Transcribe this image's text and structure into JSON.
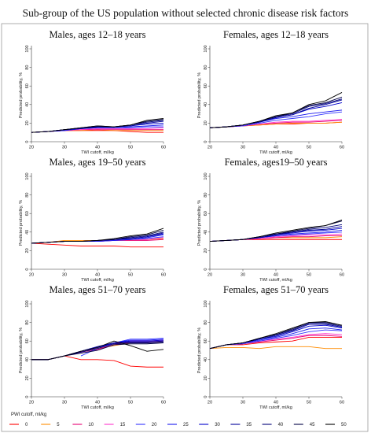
{
  "title": "Sub-group of the US population without selected chronic disease risk factors",
  "chart_data": {
    "type": "line",
    "title": "Sub-group of the US population without selected chronic disease risk factors",
    "colors": [
      "#ff0000",
      "#ff8c00",
      "#e60073",
      "#ff33cc",
      "#3333ff",
      "#1a1aee",
      "#0000cc",
      "#000099",
      "#000077",
      "#000044",
      "#000000"
    ],
    "legend": {
      "title": "PWI cutoff, ml/kg",
      "labels": [
        "0",
        "5",
        "10",
        "15",
        "20",
        "25",
        "30",
        "35",
        "40",
        "45",
        "50"
      ],
      "placement": "bottom"
    },
    "panels": [
      {
        "title": "Males, ages 12–18 years",
        "xlabel": "TWI cutoff, ml/kg",
        "ylabel": "Predicted probability, %",
        "xlim": [
          20,
          60
        ],
        "ylim": [
          0,
          100
        ],
        "xticks": [
          "20",
          "30",
          "40",
          "50",
          "60"
        ],
        "yticks": [
          "0",
          "20",
          "40",
          "60",
          "80",
          "100"
        ],
        "x": [
          20,
          25,
          30,
          35,
          40,
          45,
          50,
          55,
          60
        ],
        "series": [
          {
            "values": [
              10,
              11,
              12,
              12,
              12,
              12,
              11,
              10,
              10
            ]
          },
          {
            "values": [
              10,
              11,
              12,
              12,
              13,
              12,
              12,
              12,
              12
            ]
          },
          {
            "values": [
              10,
              11,
              12,
              13,
              13,
              13,
              13,
              13,
              13
            ]
          },
          {
            "values": [
              10,
              11,
              12,
              13,
              14,
              14,
              14,
              14,
              15
            ]
          },
          {
            "values": [
              10,
              11,
              12,
              14,
              15,
              15,
              15,
              16,
              16
            ]
          },
          {
            "values": [
              10,
              11,
              12,
              14,
              15,
              15,
              16,
              17,
              18
            ]
          },
          {
            "values": [
              10,
              11,
              13,
              14,
              16,
              16,
              17,
              19,
              20
            ]
          },
          {
            "values": [
              10,
              11,
              13,
              14,
              16,
              16,
              17,
              20,
              22
            ]
          },
          {
            "values": [
              10,
              11,
              13,
              15,
              16,
              16,
              18,
              21,
              23
            ]
          },
          {
            "values": [
              10,
              11,
              13,
              15,
              17,
              16,
              18,
              22,
              24
            ]
          },
          {
            "values": [
              10,
              11,
              13,
              15,
              17,
              16,
              18,
              23,
              25
            ]
          }
        ]
      },
      {
        "title": "Females, ages 12–18 years",
        "xlabel": "TWI cutoff, ml/kg",
        "ylabel": "Predicted probability, %",
        "xlim": [
          20,
          60
        ],
        "ylim": [
          0,
          100
        ],
        "xticks": [
          "20",
          "30",
          "40",
          "50",
          "60"
        ],
        "yticks": [
          "0",
          "20",
          "40",
          "60",
          "80",
          "100"
        ],
        "x": [
          20,
          25,
          30,
          35,
          40,
          45,
          50,
          55,
          60
        ],
        "series": [
          {
            "values": [
              15,
              16,
              17,
              18,
              19,
              19,
              20,
              20,
              21
            ]
          },
          {
            "values": [
              15,
              16,
              17,
              18,
              19,
              20,
              20,
              20,
              21
            ]
          },
          {
            "values": [
              15,
              16,
              17,
              19,
              20,
              21,
              21,
              22,
              23
            ]
          },
          {
            "values": [
              15,
              16,
              17,
              19,
              21,
              22,
              22,
              23,
              24
            ]
          },
          {
            "values": [
              15,
              16,
              17,
              20,
              23,
              25,
              27,
              30,
              32
            ]
          },
          {
            "values": [
              15,
              16,
              18,
              21,
              25,
              27,
              30,
              32,
              34
            ]
          },
          {
            "values": [
              15,
              16,
              18,
              21,
              26,
              29,
              35,
              38,
              42
            ]
          },
          {
            "values": [
              15,
              16,
              18,
              21,
              26,
              29,
              36,
              40,
              45
            ]
          },
          {
            "values": [
              15,
              16,
              18,
              22,
              27,
              30,
              38,
              41,
              46
            ]
          },
          {
            "values": [
              15,
              16,
              18,
              22,
              27,
              31,
              39,
              42,
              48
            ]
          },
          {
            "values": [
              15,
              16,
              18,
              22,
              28,
              31,
              40,
              44,
              53
            ]
          }
        ]
      },
      {
        "title": "Males, ages 19–50 years",
        "xlabel": "TWI cutoff, ml/kg",
        "ylabel": "Predicted probability, %",
        "xlim": [
          20,
          60
        ],
        "ylim": [
          0,
          100
        ],
        "xticks": [
          "20",
          "30",
          "40",
          "50",
          "60"
        ],
        "yticks": [
          "0",
          "20",
          "40",
          "60",
          "80",
          "100"
        ],
        "x": [
          20,
          25,
          30,
          35,
          40,
          45,
          50,
          55,
          60
        ],
        "series": [
          {
            "values": [
              28,
              27,
              26,
              25,
              25,
              25,
              24,
              24,
              24
            ]
          },
          {
            "values": [
              28,
              29,
              31,
              31,
              31,
              31,
              32,
              32,
              33
            ]
          },
          {
            "values": [
              28,
              29,
              30,
              30,
              30,
              31,
              31,
              31,
              32
            ]
          },
          {
            "values": [
              28,
              29,
              30,
              30,
              30,
              31,
              32,
              32,
              34
            ]
          },
          {
            "values": [
              28,
              29,
              30,
              30,
              30,
              31,
              32,
              33,
              35
            ]
          },
          {
            "values": [
              28,
              29,
              30,
              30,
              30,
              31,
              32,
              34,
              37
            ]
          },
          {
            "values": [
              28,
              29,
              30,
              30,
              31,
              32,
              33,
              35,
              38
            ]
          },
          {
            "values": [
              28,
              29,
              30,
              30,
              31,
              32,
              33,
              35,
              39
            ]
          },
          {
            "values": [
              28,
              29,
              30,
              30,
              31,
              32,
              34,
              36,
              40
            ]
          },
          {
            "values": [
              28,
              29,
              30,
              30,
              31,
              32,
              35,
              37,
              42
            ]
          },
          {
            "values": [
              28,
              29,
              30,
              30,
              31,
              33,
              36,
              38,
              44
            ]
          }
        ]
      },
      {
        "title": "Females, ages19–50 years",
        "xlabel": "TWI cutoff, ml/kg",
        "ylabel": "Predicted probability, %",
        "xlim": [
          20,
          60
        ],
        "ylim": [
          0,
          100
        ],
        "xticks": [
          "20",
          "30",
          "40",
          "50",
          "60"
        ],
        "yticks": [
          "0",
          "20",
          "40",
          "60",
          "80",
          "100"
        ],
        "x": [
          20,
          25,
          30,
          35,
          40,
          45,
          50,
          55,
          60
        ],
        "series": [
          {
            "values": [
              30,
              31,
              32,
              32,
              32,
              32,
              32,
              32,
              32
            ]
          },
          {
            "values": [
              30,
              31,
              32,
              33,
              34,
              34,
              34,
              34,
              35
            ]
          },
          {
            "values": [
              30,
              31,
              32,
              33,
              34,
              35,
              35,
              36,
              36
            ]
          },
          {
            "values": [
              30,
              31,
              32,
              33,
              35,
              36,
              37,
              37,
              38
            ]
          },
          {
            "values": [
              30,
              31,
              32,
              34,
              36,
              37,
              38,
              39,
              40
            ]
          },
          {
            "values": [
              30,
              31,
              32,
              34,
              36,
              38,
              39,
              40,
              42
            ]
          },
          {
            "values": [
              30,
              31,
              32,
              34,
              37,
              39,
              41,
              42,
              44
            ]
          },
          {
            "values": [
              30,
              31,
              32,
              34,
              37,
              40,
              42,
              43,
              46
            ]
          },
          {
            "values": [
              30,
              31,
              32,
              35,
              38,
              40,
              43,
              45,
              48
            ]
          },
          {
            "values": [
              30,
              31,
              32,
              35,
              38,
              41,
              44,
              47,
              52
            ]
          },
          {
            "values": [
              30,
              31,
              32,
              35,
              39,
              42,
              45,
              47,
              53
            ]
          }
        ]
      },
      {
        "title": "Males, ages 51–70 years",
        "xlabel": "TWI cutoff, ml/kg",
        "ylabel": "Predicted probability, %",
        "xlim": [
          20,
          60
        ],
        "ylim": [
          0,
          100
        ],
        "xticks": [
          "20",
          "30",
          "40",
          "50",
          "60"
        ],
        "yticks": [
          "0",
          "20",
          "40",
          "60",
          "80",
          "100"
        ],
        "x": [
          20,
          25,
          30,
          35,
          40,
          45,
          50,
          55,
          60
        ],
        "series": [
          {
            "values": [
              40,
              40,
              44,
              40,
              40,
              39,
              33,
              32,
              32
            ]
          },
          {
            "values": [
              40,
              40,
              44,
              48,
              52,
              55,
              58,
              58,
              59
            ]
          },
          {
            "values": [
              40,
              40,
              44,
              48,
              51,
              56,
              59,
              59,
              60
            ]
          },
          {
            "values": [
              40,
              40,
              44,
              48,
              52,
              57,
              60,
              60,
              61
            ]
          },
          {
            "values": [
              null,
              null,
              null,
              44,
              52,
              58,
              62,
              62,
              63
            ]
          },
          {
            "values": [
              40,
              40,
              44,
              49,
              53,
              58,
              61,
              61,
              62
            ]
          },
          {
            "values": [
              40,
              40,
              44,
              49,
              54,
              58,
              60,
              60,
              61
            ]
          },
          {
            "values": [
              40,
              40,
              44,
              49,
              54,
              58,
              59,
              59,
              60
            ]
          },
          {
            "values": [
              40,
              40,
              44,
              48,
              52,
              57,
              58,
              58,
              59
            ]
          },
          {
            "values": [
              40,
              40,
              44,
              47,
              50,
              56,
              57,
              57,
              58
            ]
          },
          {
            "values": [
              40,
              40,
              44,
              49,
              53,
              60,
              55,
              49,
              51
            ]
          }
        ]
      },
      {
        "title": "Females, ages 51–70 years",
        "xlabel": "TWI cutoff, ml/kg",
        "ylabel": "Predicted probability, %",
        "xlim": [
          20,
          60
        ],
        "ylim": [
          0,
          100
        ],
        "xticks": [
          "20",
          "30",
          "40",
          "50",
          "60"
        ],
        "yticks": [
          "0",
          "20",
          "40",
          "60",
          "80",
          "100"
        ],
        "x": [
          20,
          25,
          30,
          35,
          40,
          45,
          50,
          55,
          60
        ],
        "series": [
          {
            "values": [
              52,
              56,
              56,
              58,
              59,
              60,
              64,
              64,
              64
            ]
          },
          {
            "values": [
              52,
              53,
              53,
              52,
              54,
              54,
              54,
              52,
              52
            ]
          },
          {
            "values": [
              52,
              56,
              57,
              59,
              61,
              63,
              66,
              66,
              65
            ]
          },
          {
            "values": [
              52,
              56,
              57,
              60,
              62,
              64,
              67,
              68,
              67
            ]
          },
          {
            "values": [
              52,
              56,
              57,
              60,
              63,
              66,
              70,
              72,
              71
            ]
          },
          {
            "values": [
              52,
              56,
              58,
              61,
              64,
              68,
              73,
              74,
              72
            ]
          },
          {
            "values": [
              52,
              56,
              58,
              62,
              65,
              70,
              76,
              77,
              74
            ]
          },
          {
            "values": [
              52,
              56,
              58,
              62,
              66,
              71,
              78,
              78,
              75
            ]
          },
          {
            "values": [
              52,
              56,
              58,
              63,
              67,
              72,
              79,
              79,
              76
            ]
          },
          {
            "values": [
              52,
              56,
              58,
              63,
              67,
              73,
              80,
              80,
              77
            ]
          },
          {
            "values": [
              52,
              56,
              58,
              63,
              68,
              74,
              80,
              81,
              77
            ]
          }
        ]
      }
    ]
  }
}
